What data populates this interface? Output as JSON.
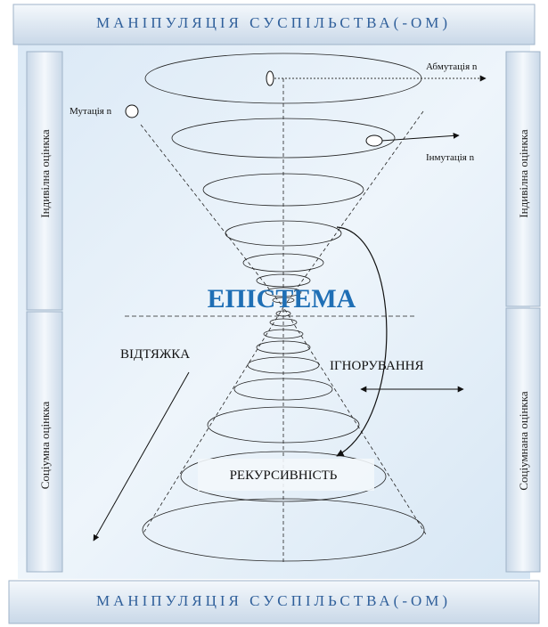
{
  "header": {
    "title": "МАНІПУЛЯЦІЯ СУСПІЛЬСТВА(-ОМ)"
  },
  "footer": {
    "title": "МАНІПУЛЯЦІЯ СУСПІЛЬСТВА(-ОМ)"
  },
  "side_panels": {
    "left_top": "Індивілна оцінкка",
    "left_bottom": "Соціумна оцінкка",
    "right_top": "Індивілна оцінкка",
    "right_bottom": "Соціумнана оцінкка"
  },
  "labels": {
    "abmutation": "Абмутація n",
    "mutation": "Мутація n",
    "inmutation": "Інмутація n",
    "episteme": "ЕПІСТЕМА",
    "pull": "ВІДТЯЖКА",
    "ignoring": "ІГНОРУВАННЯ",
    "recursiveness": "РЕКУРСИВНІСТЬ"
  }
}
